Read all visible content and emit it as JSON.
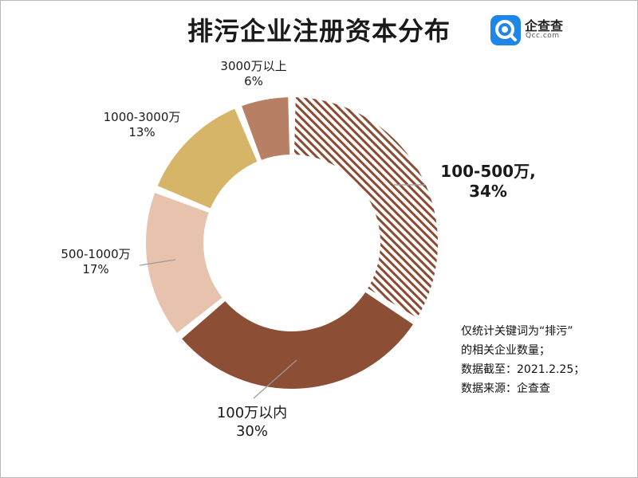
{
  "title": "排污企业注册资本分布",
  "logo": {
    "name": "企查查",
    "url": "Qcc.com"
  },
  "colors": {
    "hatch": "#8b4a32",
    "c_100": "#8c4e34",
    "c_500_1000": "#e7c2ad",
    "c_1000_3000": "#d7b568",
    "c_3000": "#b77f63",
    "logo_blue": "#1e86e8"
  },
  "chart_data": {
    "type": "pie",
    "donut": true,
    "title": "排污企业注册资本分布",
    "slices": [
      {
        "name": "100-500万,",
        "value": 34,
        "label_pct": "34%",
        "fill": "hatch"
      },
      {
        "name": "100万以内",
        "value": 30,
        "label_pct": "30%",
        "fill": "c_100"
      },
      {
        "name": "500-1000万",
        "value": 17,
        "label_pct": "17%",
        "fill": "c_500_1000"
      },
      {
        "name": "1000-3000万",
        "value": 13,
        "label_pct": "13%",
        "fill": "c_1000_3000"
      },
      {
        "name": "3000万以上",
        "value": 6,
        "label_pct": "6%",
        "fill": "c_3000"
      }
    ]
  },
  "notes": [
    "仅统计关键词为“排污”",
    "的相关企业数量；",
    "数据截至：2021.2.25；",
    "数据来源：企查查"
  ]
}
